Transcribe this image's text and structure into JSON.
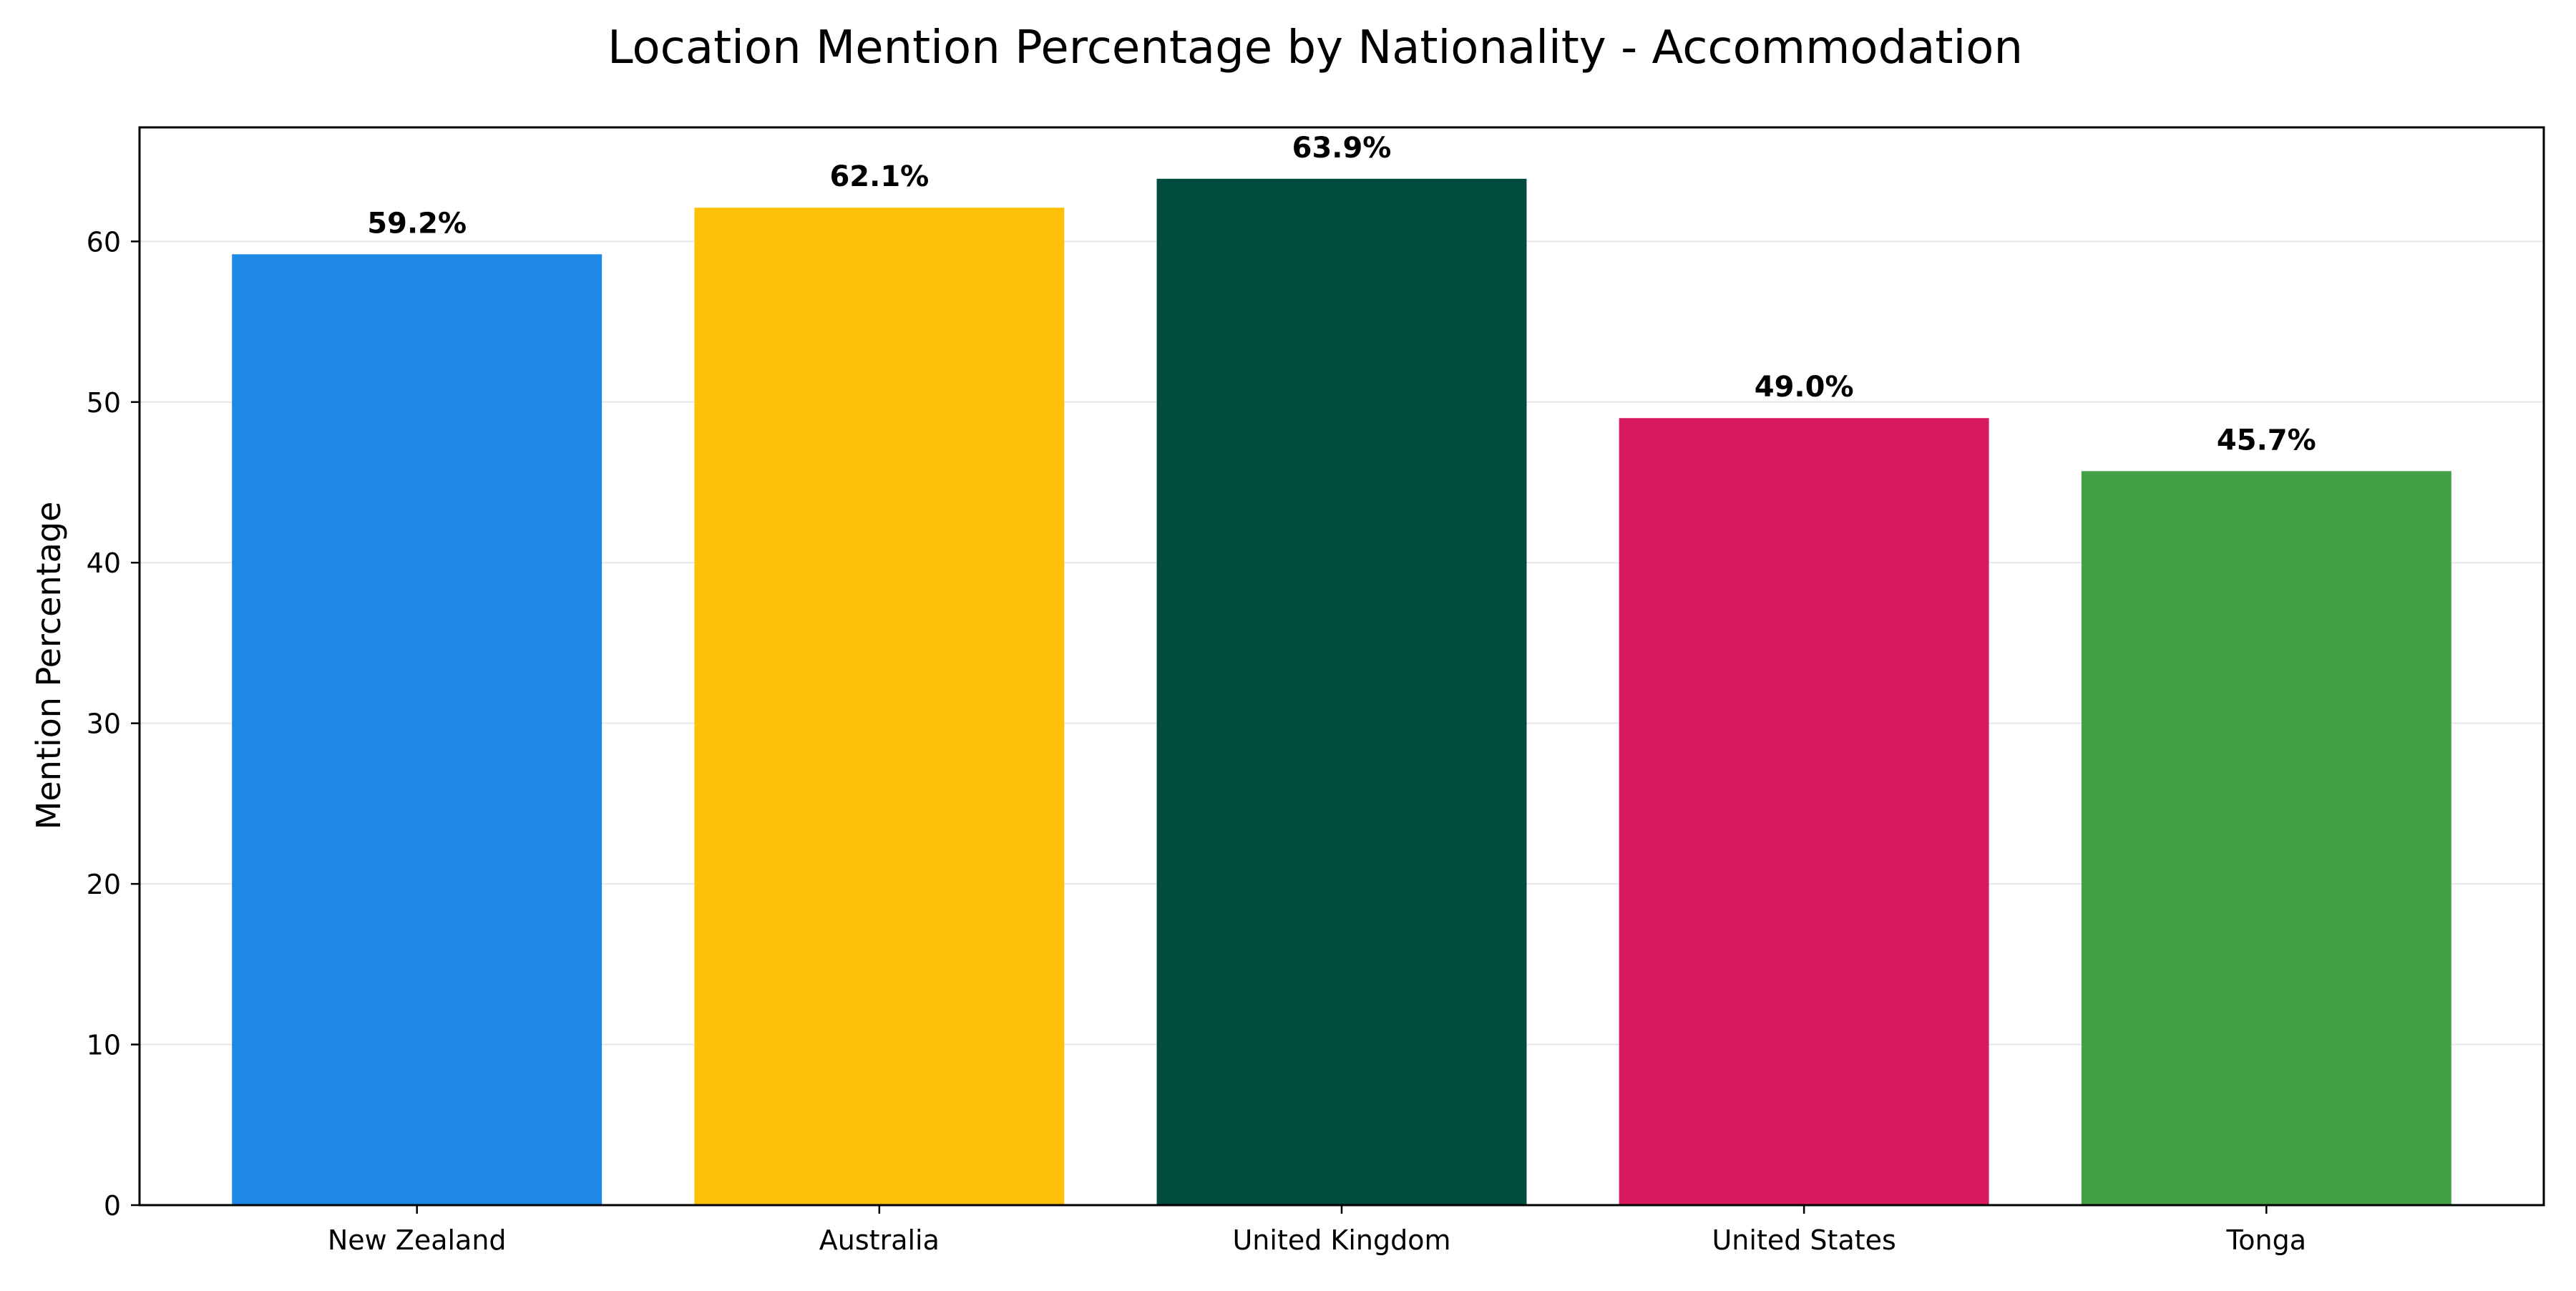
{
  "chart_data": {
    "type": "bar",
    "title": "Location Mention Percentage by Nationality - Accommodation",
    "xlabel": "",
    "ylabel": "Mention Percentage",
    "categories": [
      "New Zealand",
      "Australia",
      "United Kingdom",
      "United States",
      "Tonga"
    ],
    "values": [
      59.2,
      62.1,
      63.9,
      49.0,
      45.7
    ],
    "value_labels": [
      "59.2%",
      "62.1%",
      "63.9%",
      "49.0%",
      "45.7%"
    ],
    "colors": [
      "#1E88E5",
      "#FFC107",
      "#004D40",
      "#D81B60",
      "#43A047"
    ],
    "ylim": [
      0,
      67.1
    ],
    "yticks": [
      0,
      10,
      20,
      30,
      40,
      50,
      60
    ],
    "grid": true,
    "legend": "none"
  }
}
